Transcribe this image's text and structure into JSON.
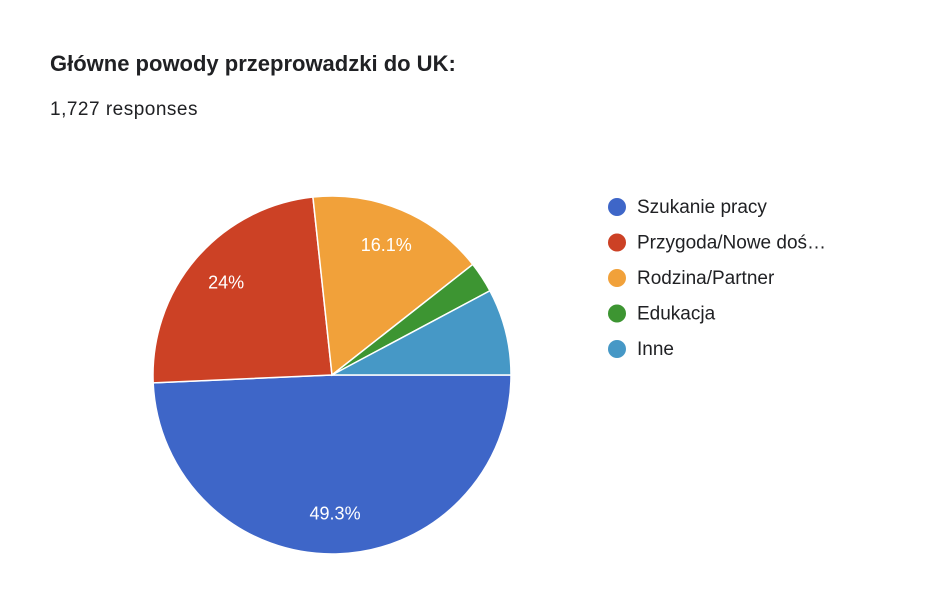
{
  "chart_data": {
    "type": "pie",
    "title": "Główne powody przeprowadzki do UK:",
    "subtitle": "1,727 responses",
    "categories": [
      "Szukanie pracy",
      "Przygoda/Nowe doś…",
      "Rodzina/Partner",
      "Edukacja",
      "Inne"
    ],
    "values": [
      49.3,
      24,
      16.1,
      2.8,
      7.8
    ],
    "value_labels": [
      "49.3%",
      "24%",
      "16.1%",
      null,
      null
    ],
    "colors": [
      "#3e66c8",
      "#cc4125",
      "#f1a13a",
      "#3d9532",
      "#4698c6"
    ],
    "legend": "right"
  }
}
